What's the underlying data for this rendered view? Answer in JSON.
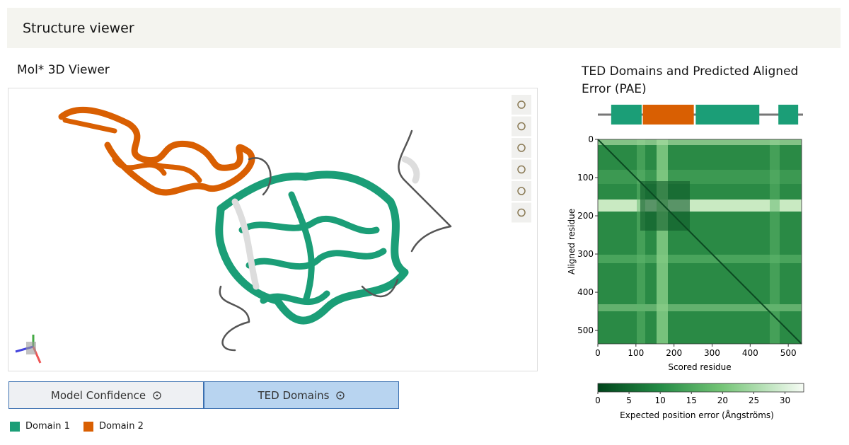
{
  "header": {
    "title": "Structure viewer"
  },
  "viewer": {
    "title": "Mol* 3D Viewer",
    "tabs": [
      "Model Confidence",
      "TED Domains"
    ],
    "active_tab": 1,
    "legend": [
      {
        "label": "Domain 1",
        "color": "#1b9e77"
      },
      {
        "label": "Domain 2",
        "color": "#d95f02"
      }
    ]
  },
  "pae": {
    "title": "TED Domains and Predicted Aligned Error (PAE)",
    "xlabel": "Scored residue",
    "ylabel": "Aligned residue",
    "xlim": [
      0,
      535
    ],
    "ylim": [
      0,
      535
    ],
    "xticks": [
      0,
      100,
      200,
      300,
      400,
      500
    ],
    "yticks": [
      0,
      100,
      200,
      300,
      400,
      500
    ],
    "domains": [
      {
        "start": 35,
        "end": 115,
        "color": "#1b9e77"
      },
      {
        "start": 118,
        "end": 252,
        "color": "#d95f02"
      },
      {
        "start": 257,
        "end": 424,
        "color": "#1b9e77"
      },
      {
        "start": 474,
        "end": 526,
        "color": "#1b9e77"
      }
    ],
    "colorbar": {
      "label": "Expected position error (Ångströms)",
      "lim": [
        0,
        33
      ],
      "ticks": [
        0,
        5,
        10,
        15,
        20,
        25,
        30
      ]
    }
  }
}
